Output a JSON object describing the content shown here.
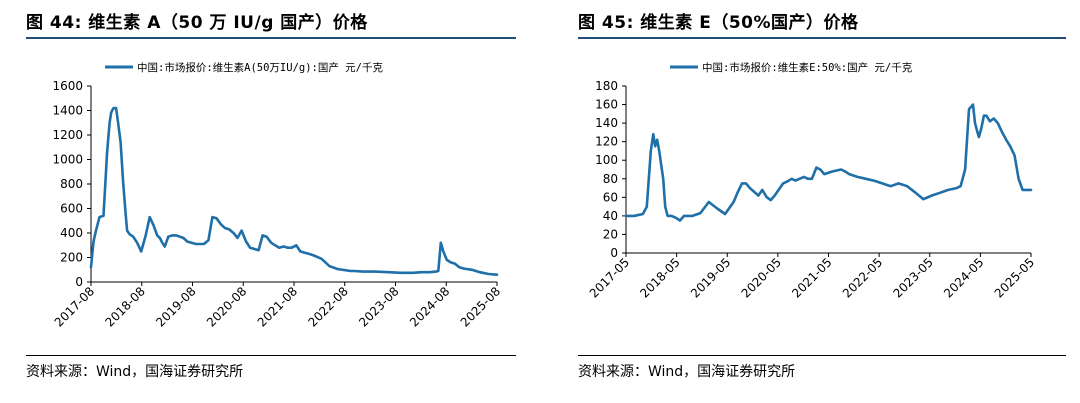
{
  "colors": {
    "series": "#1f6fa8",
    "axis": "#000000",
    "rule": "#1f4e79"
  },
  "charts": [
    {
      "fig_title": "图 44:  维生素 A（50 万 IU/g 国产）价格",
      "source": "资料来源：Wind，国海证券研究所"
    },
    {
      "fig_title": "图 45:  维生素 E（50%国产）价格",
      "source": "资料来源：Wind，国海证券研究所"
    }
  ],
  "chart_data": [
    {
      "type": "line",
      "legend": "中国:市场报价:维生素A(50万IU/g):国产 元/千克",
      "legend_position": "top",
      "grid": false,
      "ylim": [
        0,
        1600
      ],
      "yticks": [
        0,
        200,
        400,
        600,
        800,
        1000,
        1200,
        1400,
        1600
      ],
      "xlim": [
        2017.58,
        2025.67
      ],
      "xticks": [
        "2017-08",
        "2018-08",
        "2019-08",
        "2020-08",
        "2021-08",
        "2022-08",
        "2023-08",
        "2024-08",
        "2025-08"
      ],
      "series": [
        {
          "x": [
            2017.58,
            2017.63,
            2017.68,
            2017.75,
            2017.83,
            2017.9,
            2017.95,
            2017.98,
            2018.0,
            2018.03,
            2018.08,
            2018.12,
            2018.17,
            2018.22,
            2018.27,
            2018.3,
            2018.35,
            2018.42,
            2018.5,
            2018.58,
            2018.67,
            2018.75,
            2018.83,
            2018.9,
            2018.95,
            2019.0,
            2019.05,
            2019.12,
            2019.2,
            2019.28,
            2019.35,
            2019.42,
            2019.5,
            2019.58,
            2019.67,
            2019.75,
            2019.83,
            2019.92,
            2020.0,
            2020.08,
            2020.17,
            2020.25,
            2020.33,
            2020.42,
            2020.5,
            2020.58,
            2020.67,
            2020.75,
            2020.83,
            2020.92,
            2021.0,
            2021.08,
            2021.17,
            2021.25,
            2021.33,
            2021.42,
            2021.5,
            2021.58,
            2021.67,
            2021.75,
            2021.83,
            2021.92,
            2022.0,
            2022.17,
            2022.33,
            2022.5,
            2022.67,
            2022.75,
            2022.83,
            2023.0,
            2023.25,
            2023.5,
            2023.75,
            2024.0,
            2024.17,
            2024.33,
            2024.45,
            2024.5,
            2024.55,
            2024.6,
            2024.67,
            2024.75,
            2024.83,
            2024.92,
            2025.0,
            2025.17,
            2025.33,
            2025.5,
            2025.67
          ],
          "y": [
            120,
            330,
            420,
            530,
            540,
            1060,
            1300,
            1380,
            1400,
            1420,
            1420,
            1300,
            1140,
            820,
            560,
            420,
            390,
            370,
            320,
            250,
            380,
            530,
            460,
            380,
            360,
            320,
            290,
            370,
            380,
            380,
            370,
            360,
            330,
            320,
            310,
            310,
            310,
            340,
            530,
            520,
            470,
            440,
            430,
            400,
            360,
            420,
            330,
            280,
            270,
            260,
            380,
            370,
            320,
            300,
            280,
            290,
            280,
            280,
            300,
            250,
            240,
            230,
            220,
            190,
            130,
            105,
            95,
            90,
            90,
            85,
            85,
            80,
            75,
            75,
            80,
            80,
            85,
            90,
            320,
            250,
            180,
            160,
            150,
            120,
            110,
            100,
            80,
            65,
            60
          ]
        }
      ]
    },
    {
      "type": "line",
      "legend": "中国:市场报价:维生素E:50%:国产 元/千克",
      "legend_position": "top",
      "grid": false,
      "ylim": [
        0,
        180
      ],
      "yticks": [
        0,
        20,
        40,
        60,
        80,
        100,
        120,
        140,
        160,
        180
      ],
      "xlim": [
        2017.33,
        2025.5
      ],
      "xticks": [
        "2017-05",
        "2018-05",
        "2019-05",
        "2020-05",
        "2021-05",
        "2022-05",
        "2023-05",
        "2024-05",
        "2025-05"
      ],
      "series": [
        {
          "x": [
            2017.33,
            2017.5,
            2017.67,
            2017.75,
            2017.83,
            2017.88,
            2017.92,
            2017.96,
            2018.0,
            2018.04,
            2018.08,
            2018.12,
            2018.17,
            2018.25,
            2018.33,
            2018.42,
            2018.5,
            2018.67,
            2018.83,
            2019.0,
            2019.17,
            2019.33,
            2019.5,
            2019.58,
            2019.67,
            2019.75,
            2019.83,
            2020.0,
            2020.08,
            2020.17,
            2020.25,
            2020.33,
            2020.5,
            2020.58,
            2020.67,
            2020.75,
            2020.83,
            2020.92,
            2021.0,
            2021.08,
            2021.17,
            2021.25,
            2021.33,
            2021.5,
            2021.67,
            2021.75,
            2021.83,
            2022.0,
            2022.17,
            2022.33,
            2022.5,
            2022.67,
            2022.83,
            2023.0,
            2023.17,
            2023.33,
            2023.5,
            2023.67,
            2023.83,
            2024.0,
            2024.08,
            2024.17,
            2024.25,
            2024.33,
            2024.37,
            2024.42,
            2024.45,
            2024.5,
            2024.55,
            2024.6,
            2024.67,
            2024.75,
            2024.83,
            2024.92,
            2025.0,
            2025.08,
            2025.17,
            2025.25,
            2025.33,
            2025.42,
            2025.5
          ],
          "y": [
            40,
            40,
            42,
            50,
            110,
            128,
            115,
            122,
            110,
            95,
            80,
            50,
            40,
            40,
            38,
            35,
            40,
            40,
            43,
            55,
            48,
            42,
            55,
            65,
            75,
            75,
            70,
            62,
            68,
            60,
            57,
            62,
            75,
            77,
            80,
            78,
            80,
            82,
            80,
            80,
            92,
            90,
            85,
            88,
            90,
            88,
            85,
            82,
            80,
            78,
            75,
            72,
            75,
            72,
            65,
            58,
            62,
            65,
            68,
            70,
            72,
            90,
            155,
            160,
            140,
            130,
            125,
            135,
            148,
            148,
            142,
            145,
            140,
            130,
            122,
            115,
            105,
            80,
            68,
            68,
            68
          ]
        }
      ]
    }
  ]
}
